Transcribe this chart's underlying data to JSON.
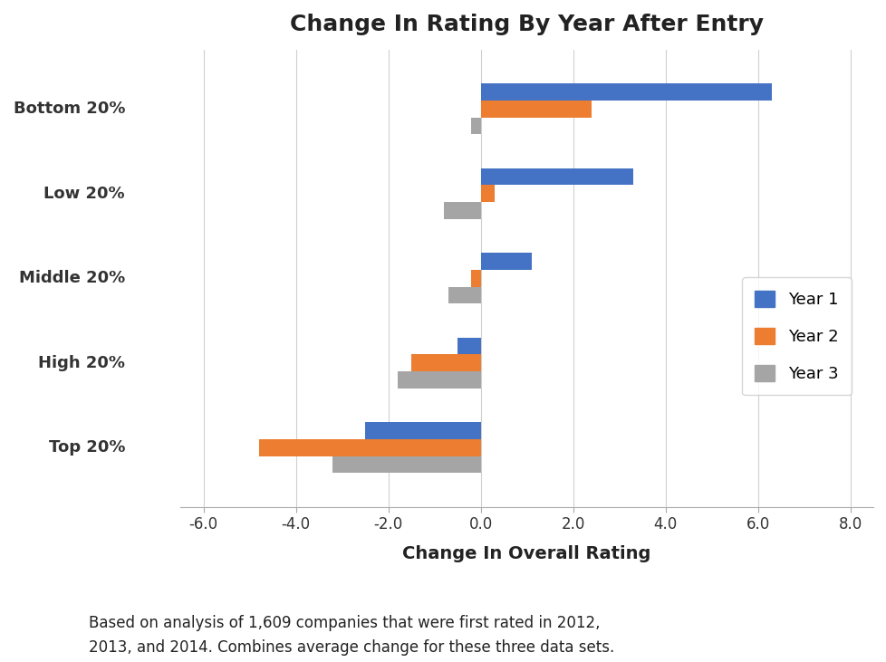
{
  "title": "Change In Rating By Year After Entry",
  "xlabel": "Change In Overall Rating",
  "categories": [
    "Bottom 20%",
    "Low 20%",
    "Middle 20%",
    "High 20%",
    "Top 20%"
  ],
  "series": {
    "Year 1": [
      6.3,
      3.3,
      1.1,
      -0.5,
      -2.5
    ],
    "Year 2": [
      2.4,
      0.3,
      -0.2,
      -1.5,
      -4.8
    ],
    "Year 3": [
      -0.2,
      -0.8,
      -0.7,
      -1.8,
      -3.2
    ]
  },
  "colors": {
    "Year 1": "#4472C4",
    "Year 2": "#ED7D31",
    "Year 3": "#A5A5A5"
  },
  "xlim": [
    -6.5,
    8.5
  ],
  "xticks": [
    -6.0,
    -4.0,
    -2.0,
    0.0,
    2.0,
    4.0,
    6.0,
    8.0
  ],
  "xtick_labels": [
    "-6.0",
    "-4.0",
    "-2.0",
    "0.0",
    "2.0",
    "4.0",
    "6.0",
    "8.0"
  ],
  "footnote": "Based on analysis of 1,609 companies that were first rated in 2012,\n2013, and 2014. Combines average change for these three data sets.",
  "background_color": "#FFFFFF",
  "bar_height": 0.2,
  "bar_spacing": 0.0
}
